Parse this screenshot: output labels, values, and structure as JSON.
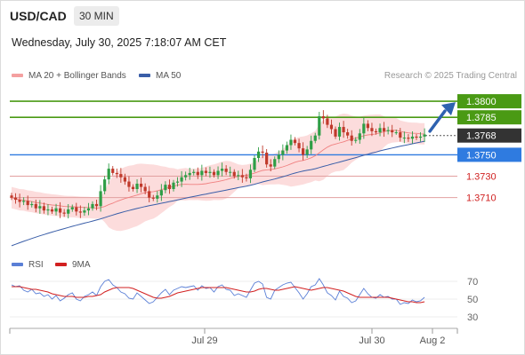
{
  "header": {
    "pair": "USD/CAD",
    "timeframe": "30 MIN",
    "datetime": "Wednesday, July 30, 2025 7:18:07 AM CET"
  },
  "legend": {
    "ma20": "MA 20 + Bollinger Bands",
    "ma50": "MA 50",
    "rsi": "RSI",
    "ma9": "9MA"
  },
  "credit": "Research © 2025 Trading Central",
  "colors": {
    "up": "#2e9e46",
    "down": "#c0392b",
    "bollinger_fill": "#fbd6d6",
    "ma20": "#f08080",
    "ma50": "#3a5ea8",
    "target": "#4a9a14",
    "pivot": "#2f7be0",
    "support": "#e2a0a0",
    "support_label": "#d02020",
    "current_box": "#333333",
    "arrow": "#2e62b0",
    "rsi_line": "#5a7fd6",
    "rsi_ma": "#d22020"
  },
  "chart_data": [
    {
      "type": "candlestick",
      "title": "USD/CAD 30 MIN",
      "x_axis": {
        "ticks": [
          "Jul 29",
          "Jul 30",
          "Aug 2"
        ]
      },
      "ylim": [
        1.3655,
        1.3815
      ],
      "levels": [
        {
          "value": 1.38,
          "label": "1.3800",
          "kind": "target"
        },
        {
          "value": 1.3785,
          "label": "1.3785",
          "kind": "target"
        },
        {
          "value": 1.3768,
          "label": "1.3768",
          "kind": "current"
        },
        {
          "value": 1.375,
          "label": "1.3750",
          "kind": "pivot"
        },
        {
          "value": 1.373,
          "label": "1.3730",
          "kind": "support"
        },
        {
          "value": 1.371,
          "label": "1.3710",
          "kind": "support"
        }
      ],
      "close": [
        1.371,
        1.3708,
        1.3706,
        1.3707,
        1.3703,
        1.3704,
        1.37,
        1.3702,
        1.3698,
        1.3699,
        1.3697,
        1.37,
        1.3696,
        1.3695,
        1.3699,
        1.3701,
        1.3697,
        1.3696,
        1.3698,
        1.37,
        1.3704,
        1.3702,
        1.3716,
        1.3727,
        1.3737,
        1.3733,
        1.3732,
        1.3729,
        1.3725,
        1.372,
        1.3718,
        1.3723,
        1.372,
        1.3716,
        1.371,
        1.3709,
        1.3712,
        1.3717,
        1.3722,
        1.3718,
        1.3724,
        1.3725,
        1.3729,
        1.3731,
        1.3733,
        1.3734,
        1.3731,
        1.3735,
        1.3733,
        1.3734,
        1.3731,
        1.3735,
        1.3737,
        1.3734,
        1.3734,
        1.373,
        1.3731,
        1.3729,
        1.3728,
        1.3736,
        1.3747,
        1.3753,
        1.3752,
        1.3741,
        1.3739,
        1.3746,
        1.375,
        1.3754,
        1.3759,
        1.3764,
        1.3761,
        1.3756,
        1.375,
        1.3755,
        1.3763,
        1.3768,
        1.3786,
        1.3784,
        1.3778,
        1.3774,
        1.3767,
        1.3776,
        1.3771,
        1.3768,
        1.3763,
        1.3764,
        1.377,
        1.3779,
        1.3775,
        1.3772,
        1.3771,
        1.3775,
        1.3772,
        1.3773,
        1.3771,
        1.3771,
        1.3766,
        1.3766,
        1.3765,
        1.3767,
        1.3766,
        1.3767,
        1.3769
      ],
      "series": [
        {
          "name": "MA 20 + Bollinger Bands"
        },
        {
          "name": "MA 50"
        }
      ]
    },
    {
      "type": "line",
      "title": "RSI",
      "y_ticks": [
        70,
        50,
        30
      ],
      "ylim": [
        20,
        80
      ],
      "series": [
        {
          "name": "RSI",
          "values": [
            66,
            64,
            65,
            60,
            58,
            61,
            56,
            57,
            53,
            55,
            50,
            54,
            48,
            51,
            55,
            57,
            50,
            48,
            53,
            55,
            58,
            54,
            64,
            70,
            72,
            66,
            63,
            58,
            56,
            51,
            50,
            57,
            53,
            49,
            45,
            47,
            52,
            57,
            61,
            55,
            60,
            62,
            64,
            63,
            64,
            65,
            60,
            65,
            62,
            63,
            58,
            64,
            66,
            61,
            60,
            54,
            56,
            54,
            52,
            60,
            68,
            70,
            67,
            52,
            50,
            60,
            63,
            66,
            68,
            69,
            63,
            57,
            50,
            56,
            64,
            66,
            73,
            66,
            57,
            54,
            49,
            59,
            53,
            51,
            46,
            48,
            55,
            62,
            56,
            52,
            51,
            55,
            52,
            53,
            50,
            50,
            44,
            46,
            45,
            49,
            47,
            48,
            52
          ]
        },
        {
          "name": "9MA",
          "values": [
            64,
            64,
            64,
            63,
            62,
            61,
            61,
            60,
            59,
            58,
            56,
            55,
            54,
            53,
            53,
            53,
            52,
            52,
            52,
            53,
            53,
            54,
            55,
            58,
            60,
            62,
            63,
            63,
            63,
            63,
            62,
            60,
            58,
            56,
            54,
            52,
            51,
            51,
            52,
            53,
            55,
            57,
            58,
            59,
            60,
            61,
            62,
            63,
            63,
            63,
            63,
            63,
            63,
            63,
            62,
            61,
            60,
            59,
            58,
            58,
            59,
            61,
            62,
            62,
            61,
            60,
            60,
            61,
            62,
            63,
            64,
            63,
            62,
            61,
            60,
            61,
            62,
            63,
            63,
            62,
            61,
            60,
            59,
            57,
            55,
            53,
            52,
            52,
            52,
            52,
            52,
            52,
            52,
            52,
            51,
            50,
            49,
            48,
            47,
            47,
            46,
            46,
            47
          ]
        }
      ]
    }
  ]
}
